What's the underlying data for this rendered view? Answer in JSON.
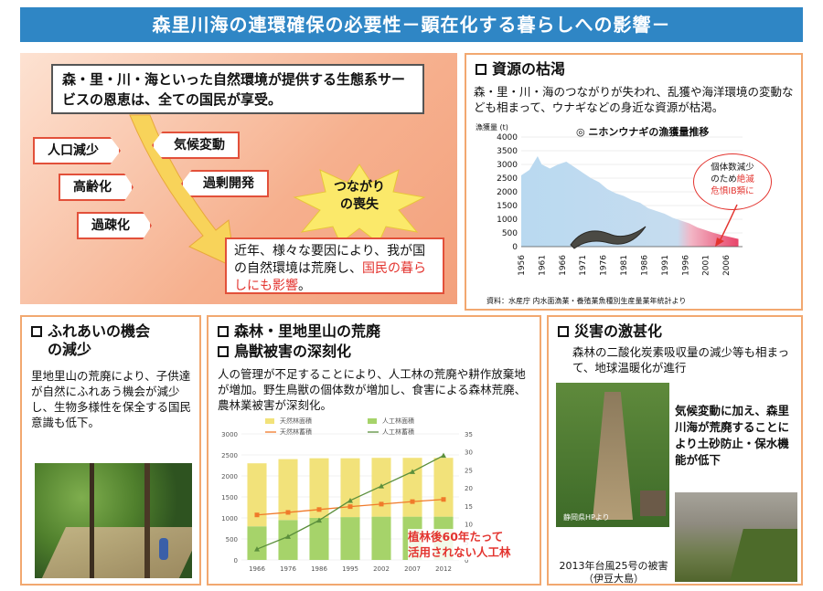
{
  "banner": "森里川海の連環確保の必要性－顕在化する暮らしへの影響－",
  "ecosystem": {
    "intro": "森・里・川・海といった自然環境が提供する生態系サービスの恩恵は、全ての国民が享受。",
    "factors": [
      "人口減少",
      "気候変動",
      "高齢化",
      "過剰開発",
      "過疎化"
    ],
    "burst_line1": "つながり",
    "burst_line2": "の喪失",
    "conclusion_pre": "近年、様々な要因により、我が国の自然環境は荒廃し、",
    "conclusion_red": "国民の暮らしにも影響",
    "conclusion_post": "。"
  },
  "resources": {
    "title": "資源の枯渇",
    "text": "森・里・川・海のつながりが失われ、乱獲や海洋環境の変動なども相まって、ウナギなどの身近な資源が枯渇。",
    "chart_title": "◎ ニホンウナギの漁獲量推移",
    "callout_line1": "個体数減少",
    "callout_line2_pre": "のため",
    "callout_line2_red": "絶滅",
    "callout_line3": "危惧IB類に",
    "source": "資料：水産庁 内水面漁業・養殖業魚種別生産量業年統計より"
  },
  "chart_data": [
    {
      "type": "area",
      "title": "ニホンウナギの漁獲量推移",
      "ylabel": "漁獲量 (t)",
      "ylim": [
        0,
        4000
      ],
      "yticks": [
        "0",
        "500",
        "1000",
        "1500",
        "2000",
        "2500",
        "3000",
        "3500",
        "4000"
      ],
      "xticks": [
        "1956",
        "1961",
        "1966",
        "1971",
        "1976",
        "1981",
        "1986",
        "1991",
        "1996",
        "2001",
        "2006"
      ],
      "x": [
        1956,
        1958,
        1960,
        1961,
        1963,
        1965,
        1967,
        1969,
        1971,
        1973,
        1975,
        1977,
        1979,
        1981,
        1983,
        1985,
        1987,
        1989,
        1991,
        1993,
        1995,
        1997,
        1999,
        2001,
        2003,
        2005,
        2007,
        2009
      ],
      "values": [
        2600,
        2800,
        3300,
        3000,
        2850,
        3000,
        3100,
        2900,
        2700,
        2500,
        2350,
        2100,
        1950,
        1850,
        1700,
        1600,
        1400,
        1300,
        1200,
        1050,
        950,
        850,
        700,
        600,
        500,
        420,
        350,
        280
      ]
    },
    {
      "type": "bar",
      "xticks": [
        "1966",
        "1976",
        "1986",
        "1995",
        "2002",
        "2007",
        "2012"
      ],
      "yticks_left": [
        "0",
        "500",
        "1000",
        "1500",
        "2000",
        "2500",
        "3000"
      ],
      "yticks_right": [
        "0",
        "5",
        "10",
        "15",
        "20",
        "25",
        "30",
        "35"
      ],
      "ylim_left": [
        0,
        3000
      ],
      "ylim_right": [
        0,
        35
      ],
      "legend": [
        "天然林面積",
        "人工林面積",
        "天然林蓄積",
        "人工林蓄積"
      ],
      "series": [
        {
          "name": "天然林面積",
          "values": [
            1500,
            1450,
            1420,
            1400,
            1400,
            1400,
            1400
          ]
        },
        {
          "name": "人工林面積",
          "values": [
            800,
            950,
            1000,
            1020,
            1030,
            1030,
            1030
          ]
        },
        {
          "name": "天然林蓄積",
          "values": [
            12.5,
            13.2,
            14.0,
            14.8,
            15.5,
            16.2,
            16.8
          ]
        },
        {
          "name": "人工林蓄積",
          "values": [
            3,
            6.5,
            11,
            16.5,
            20.5,
            24.5,
            29
          ]
        }
      ]
    }
  ],
  "contact": {
    "title_line1": "ふれあいの機会",
    "title_line2": "の減少",
    "text": "里地里山の荒廃により、子供達が自然にふれあう機会が減少し、生物多様性を保全する国民意識も低下。"
  },
  "forest": {
    "title1": "森林・里地里山の荒廃",
    "title2": "鳥獣被害の深刻化",
    "text": "人の管理が不足することにより、人工林の荒廃や耕作放棄地が増加。野生鳥獣の個体数が増加し、食害による森林荒廃、農林業被害が深刻化。",
    "note_line1": "植林後60年たって",
    "note_line2": "活用されない人工林"
  },
  "disaster": {
    "title": "災害の激甚化",
    "text": "森林の二酸化炭素吸収量の減少等も相まって、地球温暖化が進行",
    "side_text": "気候変動に加え、森里川海が荒廃することにより土砂防止・保水機能が低下",
    "photo_credit": "静岡県HPより",
    "caption_line1": "2013年台風25号の被害",
    "caption_line2": "（伊豆大島）"
  },
  "colors": {
    "banner": "#2f86c5",
    "accent_red": "#e3342f",
    "panel_border": "#f2a870",
    "bar_natural": "#f2e27a",
    "bar_planted": "#a6d36a"
  }
}
